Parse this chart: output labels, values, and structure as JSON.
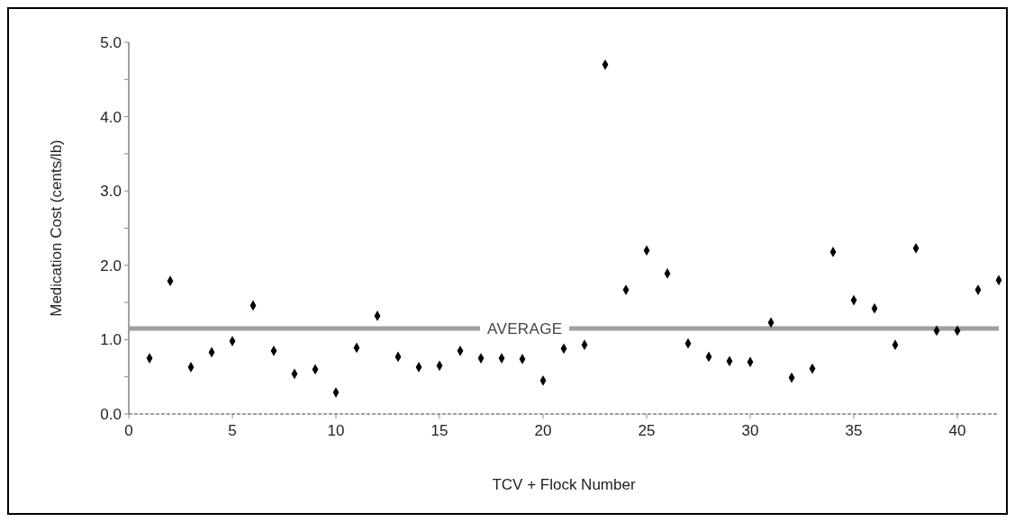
{
  "chart_data": {
    "type": "scatter",
    "xlabel": "TCV + Flock Number",
    "ylabel": "Medication Cost (cents/lb)",
    "x": [
      1,
      2,
      3,
      4,
      5,
      6,
      7,
      8,
      9,
      10,
      11,
      12,
      13,
      14,
      15,
      16,
      17,
      18,
      19,
      20,
      21,
      22,
      23,
      24,
      25,
      26,
      27,
      28,
      29,
      30,
      31,
      32,
      33,
      34,
      35,
      36,
      37,
      38,
      39,
      40,
      41,
      42
    ],
    "series": [
      {
        "color": "#000000",
        "values": [
          0.75,
          1.79,
          0.63,
          0.83,
          0.98,
          1.46,
          0.85,
          0.54,
          0.6,
          0.29,
          0.89,
          1.32,
          0.77,
          0.63,
          0.65,
          0.85,
          0.75,
          0.75,
          0.74,
          0.45,
          0.88,
          0.93,
          4.7,
          1.67,
          2.2,
          1.89,
          0.95,
          0.77,
          0.71,
          0.7,
          1.23,
          0.49,
          0.61,
          2.18,
          1.53,
          1.42,
          0.93,
          2.23,
          1.12,
          1.12,
          1.67,
          1.8
        ]
      }
    ],
    "xlim": [
      0,
      42
    ],
    "xticks": [
      0,
      5,
      10,
      15,
      20,
      25,
      30,
      35,
      40
    ],
    "ylim": [
      0,
      5
    ],
    "yticks": [
      {
        "value": 0,
        "label": "0.0"
      },
      {
        "value": 0.5,
        "label": null
      },
      {
        "value": 1,
        "label": "1.0"
      },
      {
        "value": 1.5,
        "label": null
      },
      {
        "value": 2,
        "label": "2.0"
      },
      {
        "value": 2.5,
        "label": null
      },
      {
        "value": 3,
        "label": "3.0"
      },
      {
        "value": 3.5,
        "label": null
      },
      {
        "value": 4,
        "label": "4.0"
      },
      {
        "value": 4.5,
        "label": null
      },
      {
        "value": 5,
        "label": "5.0"
      }
    ],
    "ref_lines": [
      {
        "axis": "y",
        "value": 1.15,
        "label": "AVERAGE",
        "color": "#a0a0a0"
      }
    ],
    "marker": "diamond"
  }
}
